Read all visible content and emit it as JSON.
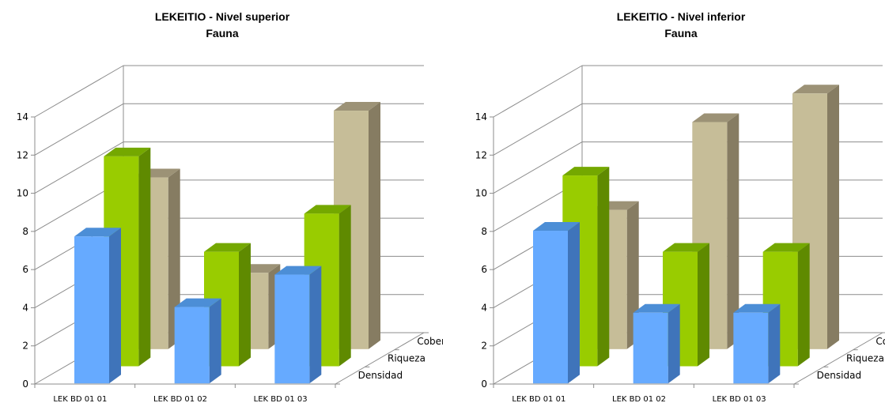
{
  "chart_data": [
    {
      "type": "bar",
      "title": "LEKEITIO - Nivel superior",
      "subtitle": "Fauna",
      "categories": [
        "LEK BD 01 01",
        "LEK BD 01 02",
        "LEK BD 01 03"
      ],
      "series": [
        {
          "name": "Densidad",
          "values": [
            7.7,
            4.0,
            5.7
          ]
        },
        {
          "name": "Riqueza",
          "values": [
            11.0,
            6.0,
            8.0
          ]
        },
        {
          "name": "Cobertura",
          "values": [
            9.0,
            4.0,
            12.5
          ]
        }
      ],
      "ylim": [
        0,
        14
      ],
      "yticks": [
        "0",
        "2",
        "4",
        "6",
        "8",
        "10",
        "12",
        "14"
      ],
      "grid": true
    },
    {
      "type": "bar",
      "title": "LEKEITIO - Nivel inferior",
      "subtitle": "Fauna",
      "categories": [
        "LEK BD 01 01",
        "LEK BD 01 02",
        "LEK BD 01 03"
      ],
      "series": [
        {
          "name": "Densidad",
          "values": [
            8.0,
            3.7,
            3.7
          ]
        },
        {
          "name": "Riqueza",
          "values": [
            10.0,
            6.0,
            6.0
          ]
        },
        {
          "name": "Cobertura",
          "values": [
            7.3,
            11.9,
            13.4
          ]
        }
      ],
      "ylim": [
        0,
        14
      ],
      "yticks": [
        "0",
        "2",
        "4",
        "6",
        "8",
        "10",
        "12",
        "14"
      ],
      "grid": true
    }
  ],
  "colors": {
    "Densidad": {
      "front": "#66aaff",
      "side": "#3f74ba",
      "top": "#4c8ed6"
    },
    "Riqueza": {
      "front": "#99cc00",
      "side": "#5f8a00",
      "top": "#74a800"
    },
    "Cobertura": {
      "front": "#c6bd98",
      "side": "#867c62",
      "top": "#9c9276"
    }
  }
}
